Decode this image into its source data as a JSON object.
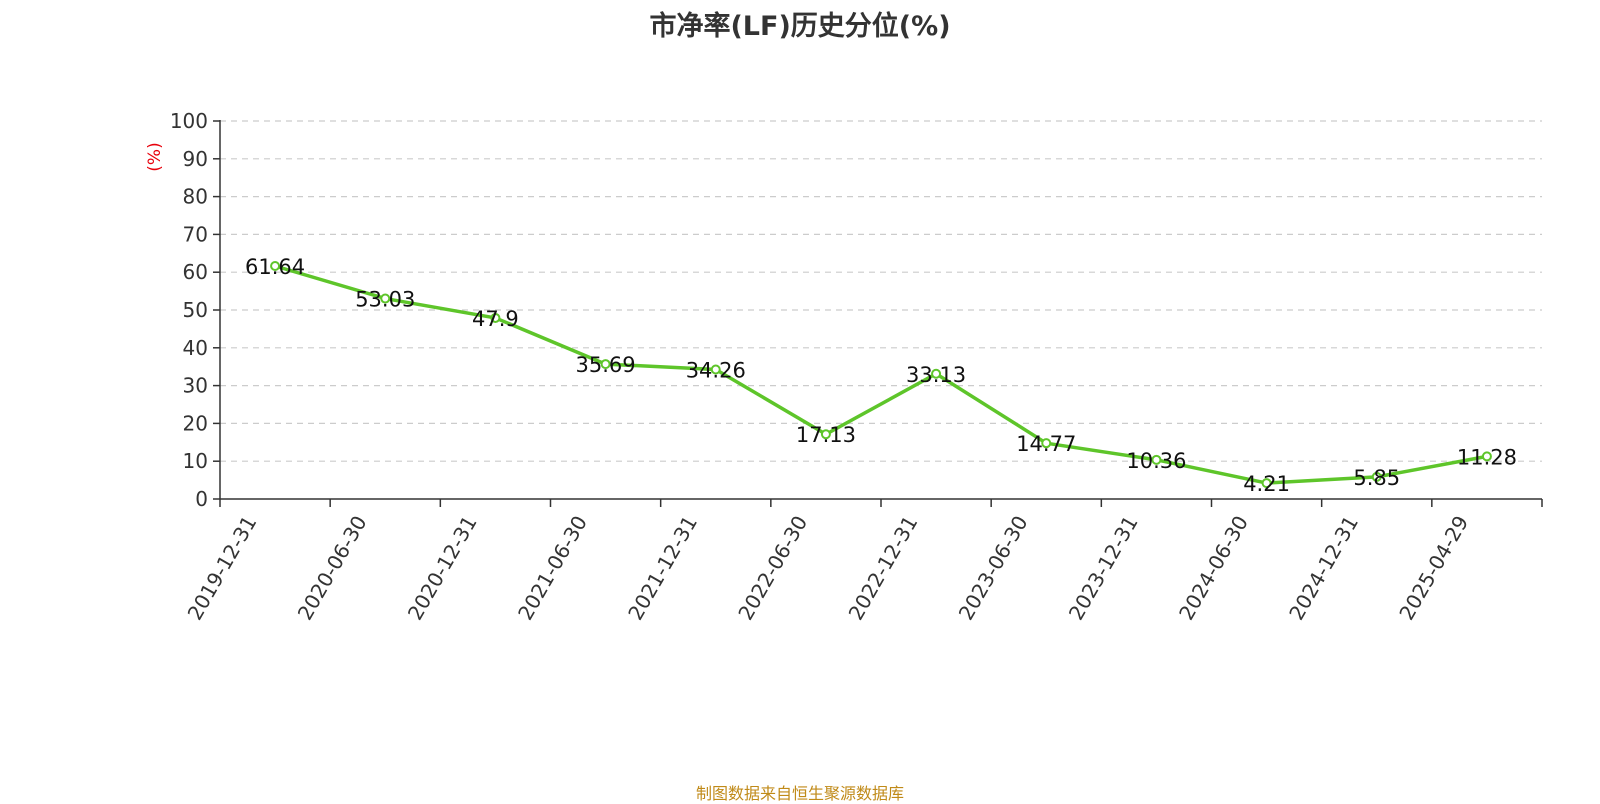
{
  "title": "市净率(LF)历史分位(%)",
  "source_note": "制图数据来自恒生聚源数据库",
  "colors": {
    "line": "#5ec52a",
    "ylabel": "#e8000b",
    "source": "#c08a18",
    "grid": "#cccccc",
    "axis": "#333333"
  },
  "chart_data": {
    "type": "line",
    "title": "市净率(LF)历史分位(%)",
    "xlabel": "",
    "ylabel": "(%)",
    "ylim": [
      0,
      100
    ],
    "yticks": [
      0,
      10,
      20,
      30,
      40,
      50,
      60,
      70,
      80,
      90,
      100
    ],
    "grid": true,
    "categories": [
      "2019-12-31",
      "2020-06-30",
      "2020-12-31",
      "2021-06-30",
      "2021-12-31",
      "2022-06-30",
      "2022-12-31",
      "2023-06-30",
      "2023-12-31",
      "2024-06-30",
      "2024-12-31",
      "2025-04-29"
    ],
    "values": [
      61.64,
      53.03,
      47.9,
      35.69,
      34.26,
      17.13,
      33.13,
      14.77,
      10.36,
      4.21,
      5.85,
      11.28
    ],
    "data_labels": [
      "61.64",
      "53.03",
      "47.9",
      "35.69",
      "34.26",
      "17.13",
      "33.13",
      "14.77",
      "10.36",
      "4.21",
      "5.85",
      "11.28"
    ]
  }
}
